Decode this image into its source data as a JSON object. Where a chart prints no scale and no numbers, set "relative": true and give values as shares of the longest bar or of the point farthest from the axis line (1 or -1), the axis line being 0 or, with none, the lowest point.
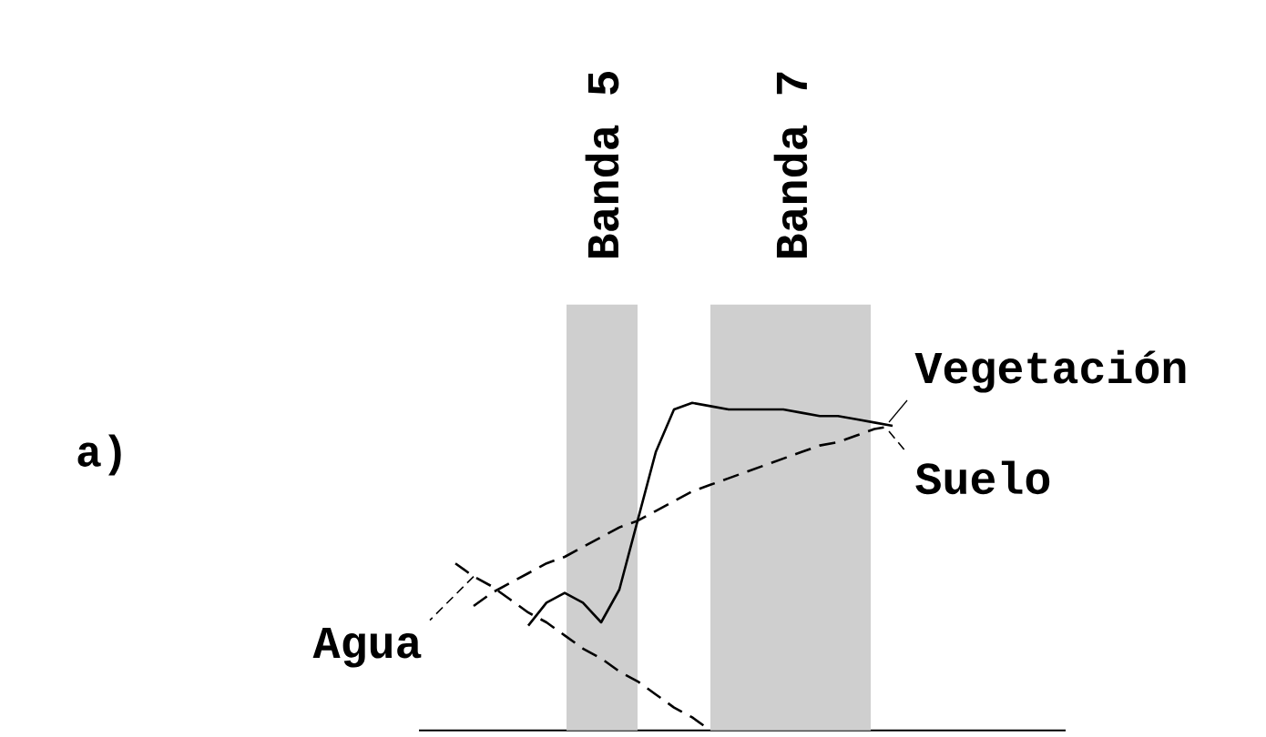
{
  "chart_data": {
    "type": "line",
    "relative": true,
    "legend": "right",
    "annotations": [
      "a)",
      "Banda 5",
      "Banda 7"
    ],
    "categories": [
      null,
      null,
      null,
      null,
      null,
      null,
      null,
      null,
      null,
      null,
      null,
      null,
      null,
      null,
      null,
      null,
      null,
      null,
      null,
      null,
      null,
      null,
      null,
      null,
      null
    ],
    "series": [
      {
        "name": "Vegetación",
        "color": "#000000",
        "line_style": "solid",
        "values": [
          null,
          null,
          null,
          null,
          0.32,
          0.39,
          0.42,
          0.39,
          0.33,
          0.43,
          0.64,
          0.85,
          0.98,
          1.0,
          0.99,
          0.98,
          0.98,
          0.98,
          0.98,
          0.97,
          0.96,
          0.96,
          0.95,
          0.94,
          0.93
        ]
      },
      {
        "name": "Suelo",
        "color": "#000000",
        "line_style": "dashed",
        "values": [
          null,
          0.38,
          0.42,
          0.45,
          0.48,
          0.51,
          0.53,
          0.56,
          0.59,
          0.62,
          0.64,
          0.67,
          0.7,
          0.73,
          0.75,
          0.77,
          0.79,
          0.81,
          0.83,
          0.85,
          0.87,
          0.88,
          0.9,
          0.92,
          0.93
        ]
      },
      {
        "name": "Agua",
        "color": "#000000",
        "line_style": "dashed",
        "values": [
          0.51,
          0.47,
          0.44,
          0.4,
          0.36,
          0.33,
          0.29,
          0.25,
          0.22,
          0.18,
          0.15,
          0.11,
          0.07,
          0.04,
          0.0,
          null,
          null,
          null,
          null,
          null,
          null,
          null,
          null,
          null,
          null
        ]
      }
    ]
  }
}
